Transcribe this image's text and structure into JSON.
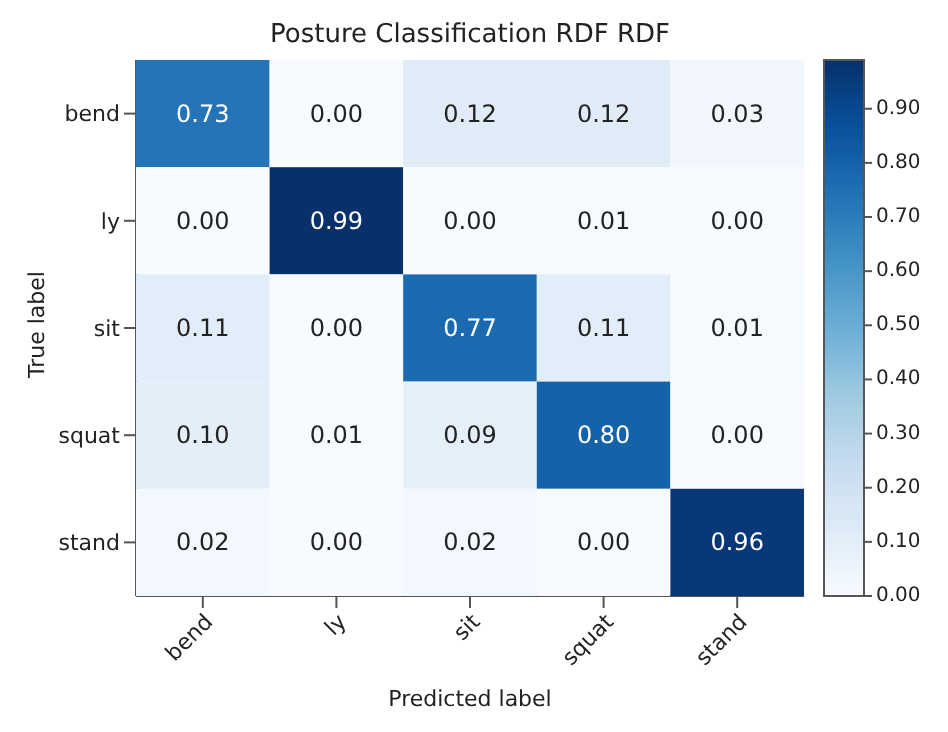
{
  "chart_data": {
    "type": "heatmap",
    "title": "Posture Classification RDF RDF",
    "xlabel": "Predicted label",
    "ylabel": "True label",
    "categories": [
      "bend",
      "ly",
      "sit",
      "squat",
      "stand"
    ],
    "y_categories": [
      "bend",
      "ly",
      "sit",
      "squat",
      "stand"
    ],
    "cells": [
      [
        0.73,
        0,
        0.12,
        0.12,
        0.03
      ],
      [
        0,
        0.99,
        0,
        0.01,
        0
      ],
      [
        0.11,
        0,
        0.77,
        0.11,
        0.01
      ],
      [
        0.1,
        0.01,
        0.09,
        0.8,
        0
      ],
      [
        0.02,
        0,
        0.02,
        0,
        0.96
      ]
    ],
    "cell_labels": [
      [
        "0.73",
        "0.00",
        "0.12",
        "0.12",
        "0.03"
      ],
      [
        "0.00",
        "0.99",
        "0.00",
        "0.01",
        "0.00"
      ],
      [
        "0.11",
        "0.00",
        "0.77",
        "0.11",
        "0.01"
      ],
      [
        "0.10",
        "0.01",
        "0.09",
        "0.80",
        "0.00"
      ],
      [
        "0.02",
        "0.00",
        "0.02",
        "0.00",
        "0.96"
      ]
    ],
    "clim": [
      0,
      0.99
    ],
    "cticks": [
      {
        "value": 0,
        "label": "0.00"
      },
      {
        "value": 0.1,
        "label": "0.10"
      },
      {
        "value": 0.2,
        "label": "0.20"
      },
      {
        "value": 0.3,
        "label": "0.30"
      },
      {
        "value": 0.4,
        "label": "0.40"
      },
      {
        "value": 0.5,
        "label": "0.50"
      },
      {
        "value": 0.6,
        "label": "0.60"
      },
      {
        "value": 0.7,
        "label": "0.70"
      },
      {
        "value": 0.8,
        "label": "0.80"
      },
      {
        "value": 0.9,
        "label": "0.90"
      }
    ]
  }
}
